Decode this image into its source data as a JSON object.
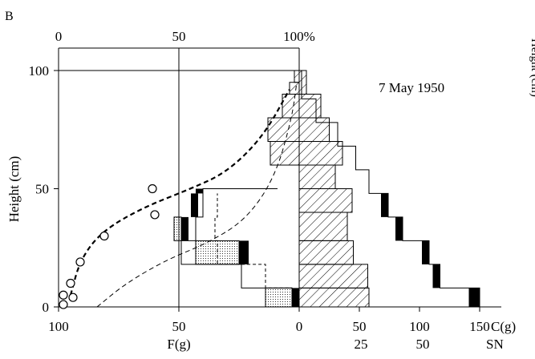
{
  "panel_label": "B",
  "date_label": "7 May 1950",
  "clipped_label": "Height (cm)",
  "chart_data": {
    "type": "productive-structure diagram",
    "ylabel": "Height (cm)",
    "ylim": [
      0,
      100
    ],
    "yticks": [
      "0",
      "50",
      "100"
    ],
    "top_axis": {
      "ticks": [
        "0",
        "50",
        "100%"
      ]
    },
    "left_axis": {
      "label": "F(g)",
      "ticks": [
        "100",
        "50"
      ]
    },
    "center_tick": "0",
    "right_axis": {
      "label": "C(g)",
      "ticks": [
        "50",
        "100",
        "150"
      ]
    },
    "sn_axis": {
      "label": "SN",
      "ticks": [
        "25",
        "50"
      ]
    },
    "relative_light_points": [
      {
        "x": 2,
        "y": 1
      },
      {
        "x": 2,
        "y": 5
      },
      {
        "x": 6,
        "y": 4
      },
      {
        "x": 5,
        "y": 10
      },
      {
        "x": 9,
        "y": 19
      },
      {
        "x": 19,
        "y": 30
      },
      {
        "x": 39,
        "y": 50
      },
      {
        "x": 40,
        "y": 39
      }
    ],
    "light_curve_mean": [
      {
        "x": 5,
        "y": 5
      },
      {
        "x": 9,
        "y": 20
      },
      {
        "x": 18,
        "y": 32
      },
      {
        "x": 35,
        "y": 42
      },
      {
        "x": 55,
        "y": 50
      },
      {
        "x": 70,
        "y": 57
      },
      {
        "x": 85,
        "y": 72
      },
      {
        "x": 96,
        "y": 92
      }
    ],
    "light_curve_lower": [
      {
        "x": 16,
        "y": 0
      },
      {
        "x": 28,
        "y": 10
      },
      {
        "x": 45,
        "y": 20
      },
      {
        "x": 62,
        "y": 27
      },
      {
        "x": 78,
        "y": 37
      },
      {
        "x": 90,
        "y": 55
      },
      {
        "x": 97,
        "y": 80
      },
      {
        "x": 99,
        "y": 95
      }
    ],
    "leaf_outer_profile": [
      {
        "y0": 0,
        "y1": 8,
        "left": 50,
        "right": 70
      },
      {
        "y0": 8,
        "y1": 18,
        "left": 43,
        "right": 56
      },
      {
        "y0": 18,
        "y1": 28,
        "left": 50,
        "right": 37
      },
      {
        "y0": 28,
        "y1": 38,
        "left": 50,
        "right": 31
      },
      {
        "y0": 38,
        "y1": 50,
        "left": 50,
        "right": 27
      },
      {
        "y0": 50,
        "y1": 100,
        "left": 0,
        "right": 0
      }
    ],
    "leaf_fresh_weight_fine": [
      {
        "y0": 0,
        "y1": 2,
        "value": 4
      },
      {
        "y0": 2,
        "y1": 8,
        "value": 3
      },
      {
        "y0": 8,
        "y1": 18,
        "value": 8
      },
      {
        "y0": 18,
        "y1": 28,
        "value": 24
      },
      {
        "y0": 28,
        "y1": 40,
        "value": 35
      },
      {
        "y0": 40,
        "y1": 60,
        "value": 10
      },
      {
        "y0": 60,
        "y1": 100,
        "value": 1
      }
    ],
    "stem_fresh_weight": [
      {
        "y0": 0,
        "y1": 8,
        "value": 58
      },
      {
        "y0": 8,
        "y1": 18,
        "value": 57
      },
      {
        "y0": 18,
        "y1": 28,
        "value": 45
      },
      {
        "y0": 28,
        "y1": 40,
        "value": 40
      },
      {
        "y0": 40,
        "y1": 50,
        "value": 44
      },
      {
        "y0": 50,
        "y1": 60,
        "value": 30
      },
      {
        "y0": 60,
        "y1": 70,
        "value": 36
      },
      {
        "y0": 70,
        "y1": 80,
        "value": 25
      },
      {
        "y0": 80,
        "y1": 90,
        "value": 18
      },
      {
        "y0": 90,
        "y1": 100,
        "value": 6
      }
    ],
    "leaf_left_hatched": [
      {
        "y0": 60,
        "y1": 70,
        "value": 12
      },
      {
        "y0": 70,
        "y1": 80,
        "value": 13
      },
      {
        "y0": 80,
        "y1": 90,
        "value": 7
      },
      {
        "y0": 90,
        "y1": 95,
        "value": 4
      },
      {
        "y0": 95,
        "y1": 100,
        "value": 2
      }
    ],
    "stem_outer_profile": [
      {
        "y0": 0,
        "y1": 8,
        "value": 150
      },
      {
        "y0": 8,
        "y1": 18,
        "value": 117
      },
      {
        "y0": 18,
        "y1": 28,
        "value": 108
      },
      {
        "y0": 28,
        "y1": 38,
        "value": 86
      },
      {
        "y0": 38,
        "y1": 48,
        "value": 74
      },
      {
        "y0": 48,
        "y1": 58,
        "value": 58
      },
      {
        "y0": 58,
        "y1": 68,
        "value": 47
      },
      {
        "y0": 68,
        "y1": 78,
        "value": 32
      },
      {
        "y0": 78,
        "y1": 88,
        "value": 14
      },
      {
        "y0": 88,
        "y1": 100,
        "value": 2
      }
    ],
    "flower_blocks_black": [
      {
        "side": "right",
        "y0": 0,
        "y1": 8,
        "from": 141,
        "to": 150
      },
      {
        "side": "right",
        "y0": 8,
        "y1": 18,
        "from": 111,
        "to": 117
      },
      {
        "side": "right",
        "y0": 18,
        "y1": 28,
        "from": 102,
        "to": 108
      },
      {
        "side": "right",
        "y0": 28,
        "y1": 38,
        "from": 80,
        "to": 86
      },
      {
        "side": "right",
        "y0": 38,
        "y1": 48,
        "from": 68,
        "to": 74
      },
      {
        "side": "left",
        "y0": 0,
        "y1": 8,
        "from": 0,
        "to": 3
      },
      {
        "side": "left",
        "y0": 18,
        "y1": 28,
        "from": 21,
        "to": 25
      },
      {
        "side": "left",
        "y0": 28,
        "y1": 38,
        "from": 46,
        "to": 49
      },
      {
        "side": "left",
        "y0": 38,
        "y1": 48,
        "from": 42,
        "to": 45
      },
      {
        "side": "left",
        "y0": 48,
        "y1": 50,
        "from": 40,
        "to": 43
      }
    ],
    "dotted_blocks": [
      {
        "y0": 0,
        "y1": 8,
        "from": 3,
        "to": 14
      },
      {
        "y0": 18,
        "y1": 28,
        "from": 25,
        "to": 43
      },
      {
        "y0": 28,
        "y1": 38,
        "from": 49,
        "to": 52
      }
    ],
    "dashed_profile": [
      {
        "y": 0,
        "x": 3
      },
      {
        "y": 18,
        "x": 8
      },
      {
        "y": 28,
        "x": 24
      },
      {
        "y": 38,
        "x": 34
      },
      {
        "y": 48,
        "x": 34
      }
    ]
  }
}
